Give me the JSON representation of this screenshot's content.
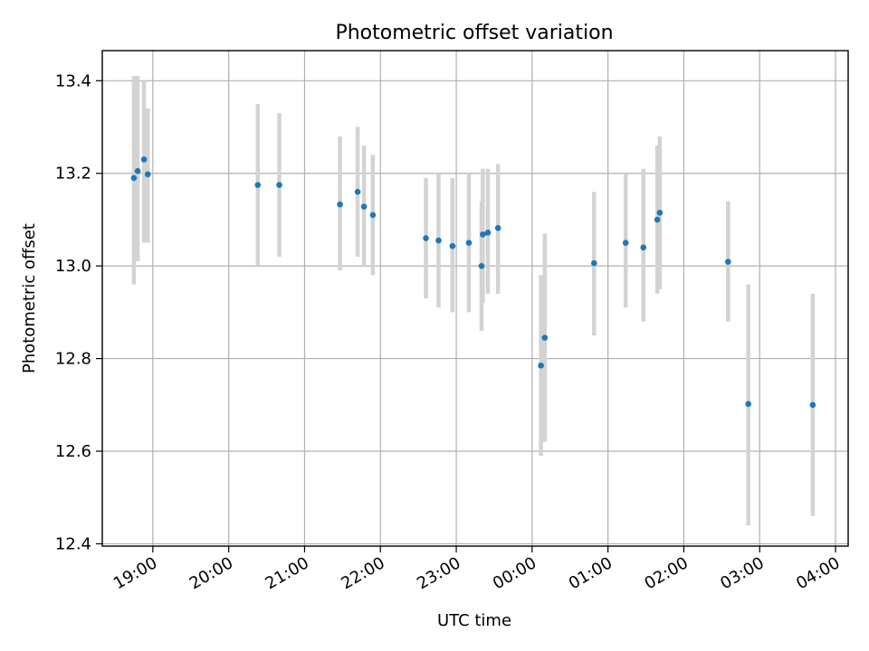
{
  "chart_data": {
    "type": "scatter",
    "title": "Photometric offset variation",
    "xlabel": "UTC time",
    "ylabel": "Photometric offset",
    "grid": true,
    "x_axis_type": "time",
    "x_range": [
      "2000-01-01T18:20:00",
      "2000-01-02T04:10:00"
    ],
    "ylim": [
      12.395,
      13.465
    ],
    "x_ticks": [
      {
        "t": "2000-01-01T19:00:00",
        "label": "19:00"
      },
      {
        "t": "2000-01-01T20:00:00",
        "label": "20:00"
      },
      {
        "t": "2000-01-01T21:00:00",
        "label": "21:00"
      },
      {
        "t": "2000-01-01T22:00:00",
        "label": "22:00"
      },
      {
        "t": "2000-01-01T23:00:00",
        "label": "23:00"
      },
      {
        "t": "2000-01-02T00:00:00",
        "label": "00:00"
      },
      {
        "t": "2000-01-02T01:00:00",
        "label": "01:00"
      },
      {
        "t": "2000-01-02T02:00:00",
        "label": "02:00"
      },
      {
        "t": "2000-01-02T03:00:00",
        "label": "03:00"
      },
      {
        "t": "2000-01-02T04:00:00",
        "label": "04:00"
      }
    ],
    "y_ticks": [
      {
        "v": 12.4,
        "label": "12.4"
      },
      {
        "v": 12.6,
        "label": "12.6"
      },
      {
        "v": 12.8,
        "label": "12.8"
      },
      {
        "v": 13.0,
        "label": "13.0"
      },
      {
        "v": 13.2,
        "label": "13.2"
      },
      {
        "v": 13.4,
        "label": "13.4"
      }
    ],
    "colors": {
      "point": "#1f77b4",
      "errorbar": "#d3d3d3",
      "grid": "#b0b0b0"
    },
    "points": [
      {
        "t": "2000-01-01T18:45:00",
        "y": 13.19,
        "lo": 12.96,
        "hi": 13.41
      },
      {
        "t": "2000-01-01T18:48:00",
        "y": 13.205,
        "lo": 13.01,
        "hi": 13.41
      },
      {
        "t": "2000-01-01T18:53:00",
        "y": 13.23,
        "lo": 13.05,
        "hi": 13.4
      },
      {
        "t": "2000-01-01T18:56:00",
        "y": 13.198,
        "lo": 13.05,
        "hi": 13.34
      },
      {
        "t": "2000-01-01T20:23:00",
        "y": 13.175,
        "lo": 13.0,
        "hi": 13.35
      },
      {
        "t": "2000-01-01T20:40:00",
        "y": 13.175,
        "lo": 13.02,
        "hi": 13.33
      },
      {
        "t": "2000-01-01T21:28:00",
        "y": 13.133,
        "lo": 12.99,
        "hi": 13.28
      },
      {
        "t": "2000-01-01T21:42:00",
        "y": 13.16,
        "lo": 13.02,
        "hi": 13.3
      },
      {
        "t": "2000-01-01T21:47:00",
        "y": 13.128,
        "lo": 13.0,
        "hi": 13.26
      },
      {
        "t": "2000-01-01T21:54:00",
        "y": 13.11,
        "lo": 12.98,
        "hi": 13.24
      },
      {
        "t": "2000-01-01T22:36:00",
        "y": 13.06,
        "lo": 12.93,
        "hi": 13.19
      },
      {
        "t": "2000-01-01T22:46:00",
        "y": 13.055,
        "lo": 12.91,
        "hi": 13.2
      },
      {
        "t": "2000-01-01T22:57:00",
        "y": 13.043,
        "lo": 12.9,
        "hi": 13.19
      },
      {
        "t": "2000-01-01T23:10:00",
        "y": 13.05,
        "lo": 12.9,
        "hi": 13.2
      },
      {
        "t": "2000-01-01T23:20:00",
        "y": 13.0,
        "lo": 12.86,
        "hi": 13.14
      },
      {
        "t": "2000-01-01T23:21:00",
        "y": 13.068,
        "lo": 12.92,
        "hi": 13.21
      },
      {
        "t": "2000-01-01T23:25:00",
        "y": 13.072,
        "lo": 12.94,
        "hi": 13.21
      },
      {
        "t": "2000-01-01T23:33:00",
        "y": 13.082,
        "lo": 12.94,
        "hi": 13.22
      },
      {
        "t": "2000-01-02T00:07:00",
        "y": 12.785,
        "lo": 12.59,
        "hi": 12.98
      },
      {
        "t": "2000-01-02T00:10:00",
        "y": 12.845,
        "lo": 12.62,
        "hi": 13.07
      },
      {
        "t": "2000-01-02T00:49:00",
        "y": 13.006,
        "lo": 12.85,
        "hi": 13.16
      },
      {
        "t": "2000-01-02T01:14:00",
        "y": 13.05,
        "lo": 12.91,
        "hi": 13.2
      },
      {
        "t": "2000-01-02T01:28:00",
        "y": 13.04,
        "lo": 12.88,
        "hi": 13.21
      },
      {
        "t": "2000-01-02T01:39:00",
        "y": 13.1,
        "lo": 12.94,
        "hi": 13.26
      },
      {
        "t": "2000-01-02T01:41:00",
        "y": 13.115,
        "lo": 12.95,
        "hi": 13.28
      },
      {
        "t": "2000-01-02T02:35:00",
        "y": 13.009,
        "lo": 12.88,
        "hi": 13.14
      },
      {
        "t": "2000-01-02T02:51:00",
        "y": 12.702,
        "lo": 12.44,
        "hi": 12.96
      },
      {
        "t": "2000-01-02T03:42:00",
        "y": 12.7,
        "lo": 12.46,
        "hi": 12.94
      }
    ]
  }
}
